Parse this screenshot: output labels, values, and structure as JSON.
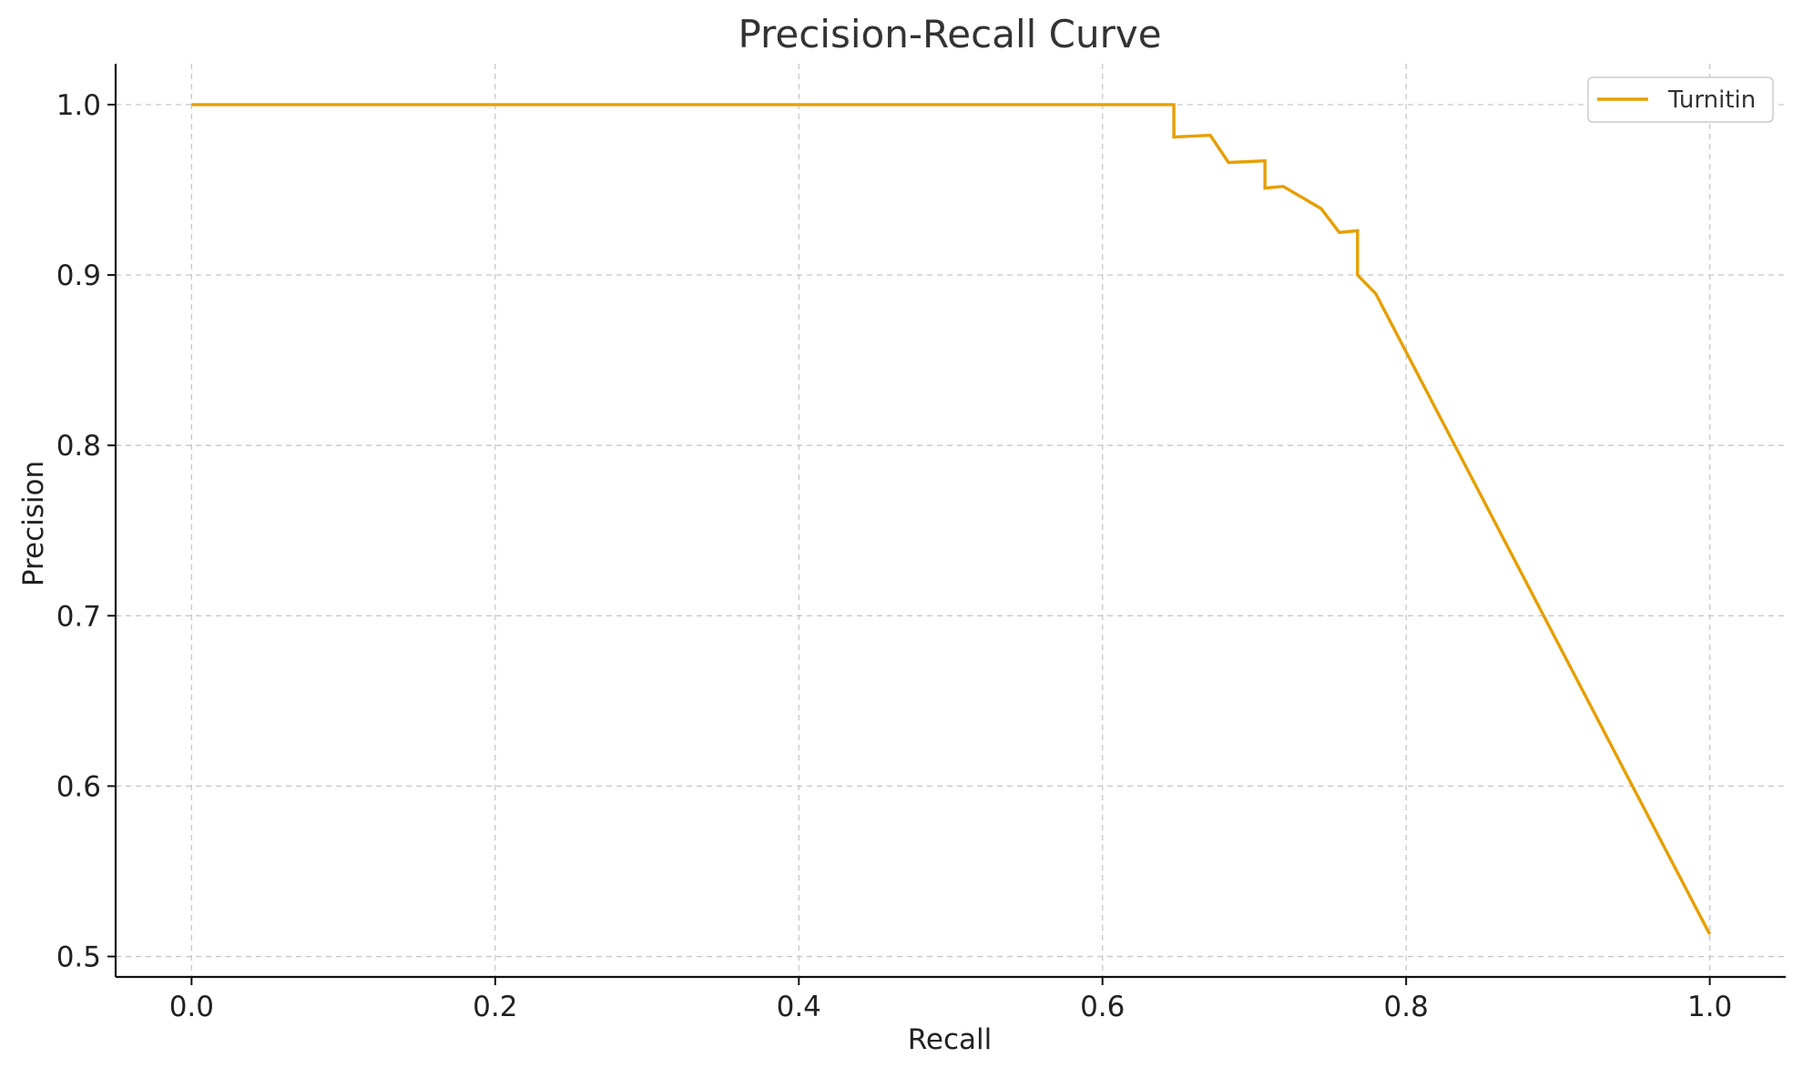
{
  "chart_data": {
    "type": "line",
    "title": "Precision-Recall Curve",
    "xlabel": "Recall",
    "ylabel": "Precision",
    "xlim": [
      -0.05,
      1.05
    ],
    "ylim": [
      0.488,
      1.024
    ],
    "xticks": [
      0.0,
      0.2,
      0.4,
      0.6,
      0.8,
      1.0
    ],
    "xtick_labels": [
      "0.0",
      "0.2",
      "0.4",
      "0.6",
      "0.8",
      "1.0"
    ],
    "yticks": [
      0.5,
      0.6,
      0.7,
      0.8,
      0.9,
      1.0
    ],
    "ytick_labels": [
      "0.5",
      "0.6",
      "0.7",
      "0.8",
      "0.9",
      "1.0"
    ],
    "grid": true,
    "legend_position": "top-right",
    "series": [
      {
        "name": "Turnitin",
        "color": "#E69F00",
        "x": [
          0.0,
          0.647,
          0.647,
          0.671,
          0.683,
          0.707,
          0.707,
          0.719,
          0.744,
          0.756,
          0.768,
          0.768,
          0.78,
          1.0
        ],
        "y": [
          1.0,
          1.0,
          0.981,
          0.982,
          0.966,
          0.967,
          0.951,
          0.952,
          0.939,
          0.925,
          0.926,
          0.9,
          0.889,
          0.513
        ]
      }
    ]
  }
}
